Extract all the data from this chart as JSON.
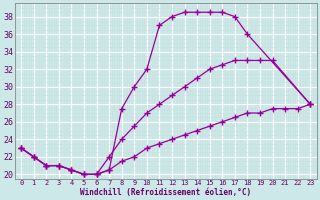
{
  "xlabel": "Windchill (Refroidissement éolien,°C)",
  "bg_color": "#cce8e8",
  "grid_color": "#aacccc",
  "line_color": "#990099",
  "xlim": [
    -0.5,
    23.5
  ],
  "ylim": [
    19.5,
    39.5
  ],
  "x_ticks": [
    0,
    1,
    2,
    3,
    4,
    5,
    6,
    7,
    8,
    9,
    10,
    11,
    12,
    13,
    14,
    15,
    16,
    17,
    18,
    19,
    20,
    21,
    22,
    23
  ],
  "y_ticks": [
    20,
    22,
    24,
    26,
    28,
    30,
    32,
    34,
    36,
    38
  ],
  "curve1_x": [
    0,
    1,
    2,
    3,
    4,
    5,
    6,
    7,
    8,
    9,
    10,
    11,
    12,
    13,
    14,
    15,
    16,
    17,
    18,
    23
  ],
  "curve1_y": [
    23,
    22,
    21,
    21,
    20.5,
    20,
    20,
    20.5,
    27.5,
    30,
    32,
    37,
    38,
    38.5,
    38.5,
    38.5,
    38.5,
    38,
    36,
    28
  ],
  "curve2_x": [
    0,
    1,
    2,
    3,
    4,
    5,
    6,
    7,
    8,
    9,
    10,
    11,
    12,
    13,
    14,
    15,
    16,
    17,
    18,
    19,
    20,
    23
  ],
  "curve2_y": [
    23,
    22,
    21,
    21,
    20.5,
    20,
    20,
    22,
    24,
    25.5,
    27,
    28,
    29,
    30,
    31,
    32,
    32.5,
    33,
    33,
    33,
    33,
    28
  ],
  "curve3_x": [
    0,
    1,
    2,
    3,
    4,
    5,
    6,
    7,
    8,
    9,
    10,
    11,
    12,
    13,
    14,
    15,
    16,
    17,
    18,
    19,
    20,
    21,
    22,
    23
  ],
  "curve3_y": [
    23,
    22,
    21,
    21,
    20.5,
    20,
    20,
    20.5,
    21.5,
    22,
    23,
    23.5,
    24,
    24.5,
    25,
    25.5,
    26,
    26.5,
    27,
    27,
    27.5,
    27.5,
    27.5,
    28
  ]
}
